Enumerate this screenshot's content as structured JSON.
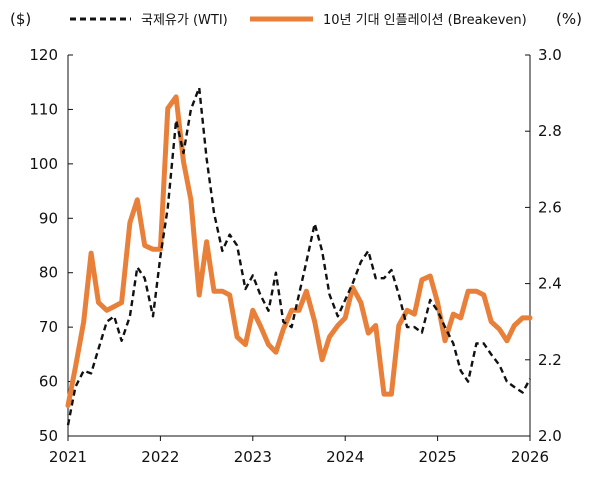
{
  "chart_data": {
    "type": "line",
    "left_unit": "($)",
    "right_unit": "(%)",
    "left_axis": {
      "min": 50,
      "max": 120,
      "ticks": [
        "50",
        "60",
        "70",
        "80",
        "90",
        "100",
        "110",
        "120"
      ]
    },
    "right_axis": {
      "min": 2.0,
      "max": 3.0,
      "ticks": [
        "2.0",
        "2.2",
        "2.4",
        "2.6",
        "2.8",
        "3.0"
      ]
    },
    "x_axis": {
      "min": 2021.0,
      "max": 2026.0,
      "ticks": [
        "2021",
        "2022",
        "2023",
        "2024",
        "2025",
        "2026"
      ]
    },
    "series": [
      {
        "name": "국제유가 (WTI)",
        "axis": "left",
        "color": "#111111",
        "style": "dashed",
        "x": [
          2021.0,
          2021.08,
          2021.17,
          2021.25,
          2021.33,
          2021.42,
          2021.5,
          2021.58,
          2021.67,
          2021.75,
          2021.83,
          2021.92,
          2022.0,
          2022.08,
          2022.17,
          2022.25,
          2022.33,
          2022.42,
          2022.5,
          2022.58,
          2022.67,
          2022.75,
          2022.83,
          2022.92,
          2023.0,
          2023.08,
          2023.17,
          2023.25,
          2023.33,
          2023.42,
          2023.5,
          2023.58,
          2023.67,
          2023.75,
          2023.83,
          2023.92,
          2024.0,
          2024.08,
          2024.17,
          2024.25,
          2024.33,
          2024.42,
          2024.5,
          2024.58,
          2024.67,
          2024.75,
          2024.83,
          2024.92,
          2025.0,
          2025.08,
          2025.17,
          2025.25,
          2025.33,
          2025.42,
          2025.5,
          2025.58,
          2025.67,
          2025.75,
          2025.83,
          2025.92,
          2026.0
        ],
        "values": [
          52,
          59,
          62,
          61.5,
          66,
          71,
          72,
          67.5,
          72,
          81,
          79,
          72,
          83,
          92,
          108,
          102,
          110,
          114,
          101,
          91,
          84,
          87,
          85,
          77,
          79.5,
          76,
          73,
          80,
          71,
          70,
          76,
          82,
          89,
          84,
          76,
          72,
          75,
          78,
          82,
          84,
          79,
          79,
          80.5,
          76,
          70,
          70,
          69,
          75,
          73,
          70,
          67,
          62,
          60,
          67,
          67,
          65,
          63,
          60,
          59,
          58,
          60.5
        ]
      },
      {
        "name": "10년 기대 인플레이션 (Breakeven)",
        "axis": "right",
        "color": "#e8803a",
        "style": "solid",
        "x": [
          2021.0,
          2021.08,
          2021.17,
          2021.25,
          2021.33,
          2021.42,
          2021.5,
          2021.58,
          2021.67,
          2021.75,
          2021.83,
          2021.92,
          2022.0,
          2022.08,
          2022.17,
          2022.25,
          2022.33,
          2022.42,
          2022.5,
          2022.58,
          2022.67,
          2022.75,
          2022.83,
          2022.92,
          2023.0,
          2023.08,
          2023.17,
          2023.25,
          2023.33,
          2023.42,
          2023.5,
          2023.58,
          2023.67,
          2023.75,
          2023.83,
          2023.92,
          2024.0,
          2024.08,
          2024.17,
          2024.25,
          2024.33,
          2024.42,
          2024.5,
          2024.58,
          2024.67,
          2024.75,
          2024.83,
          2024.92,
          2025.0,
          2025.08,
          2025.17,
          2025.25,
          2025.33,
          2025.42,
          2025.5,
          2025.58,
          2025.67,
          2025.75,
          2025.83,
          2025.92,
          2026.0
        ],
        "values": [
          2.08,
          2.18,
          2.3,
          2.48,
          2.35,
          2.33,
          2.34,
          2.35,
          2.56,
          2.62,
          2.5,
          2.49,
          2.49,
          2.86,
          2.89,
          2.72,
          2.62,
          2.37,
          2.51,
          2.38,
          2.38,
          2.37,
          2.26,
          2.24,
          2.33,
          2.29,
          2.24,
          2.22,
          2.28,
          2.33,
          2.33,
          2.38,
          2.3,
          2.2,
          2.26,
          2.29,
          2.31,
          2.39,
          2.35,
          2.27,
          2.29,
          2.11,
          2.11,
          2.29,
          2.33,
          2.32,
          2.41,
          2.42,
          2.35,
          2.25,
          2.32,
          2.31,
          2.38,
          2.38,
          2.37,
          2.3,
          2.28,
          2.25,
          2.29,
          2.31,
          2.31
        ]
      }
    ],
    "legend_position": "top",
    "grid": false
  }
}
